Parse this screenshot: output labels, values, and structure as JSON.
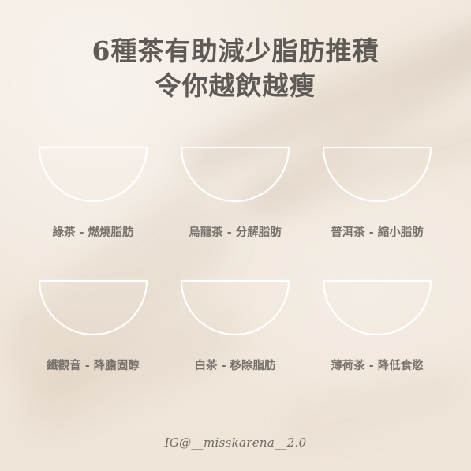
{
  "title": {
    "line1": "6種茶有助減少脂肪推積",
    "line2": "令你越飲越瘦"
  },
  "tea_items": [
    {
      "label": "綠茶 - 燃燒脂肪",
      "icon": "teacup-outline-icon"
    },
    {
      "label": "烏龍茶 - 分解脂肪",
      "icon": "teacup-outline-icon"
    },
    {
      "label": "普洱茶 - 縮小脂肪",
      "icon": "teacup-outline-icon"
    },
    {
      "label": "鐵觀音 - 降膽固醇",
      "icon": "teacup-outline-icon"
    },
    {
      "label": "白茶 - 移除脂肪",
      "icon": "teacup-outline-icon"
    },
    {
      "label": "薄荷茶 - 降低食慾",
      "icon": "teacup-outline-icon"
    }
  ],
  "footer": {
    "credit": "IG@__misskarena__2.0"
  }
}
